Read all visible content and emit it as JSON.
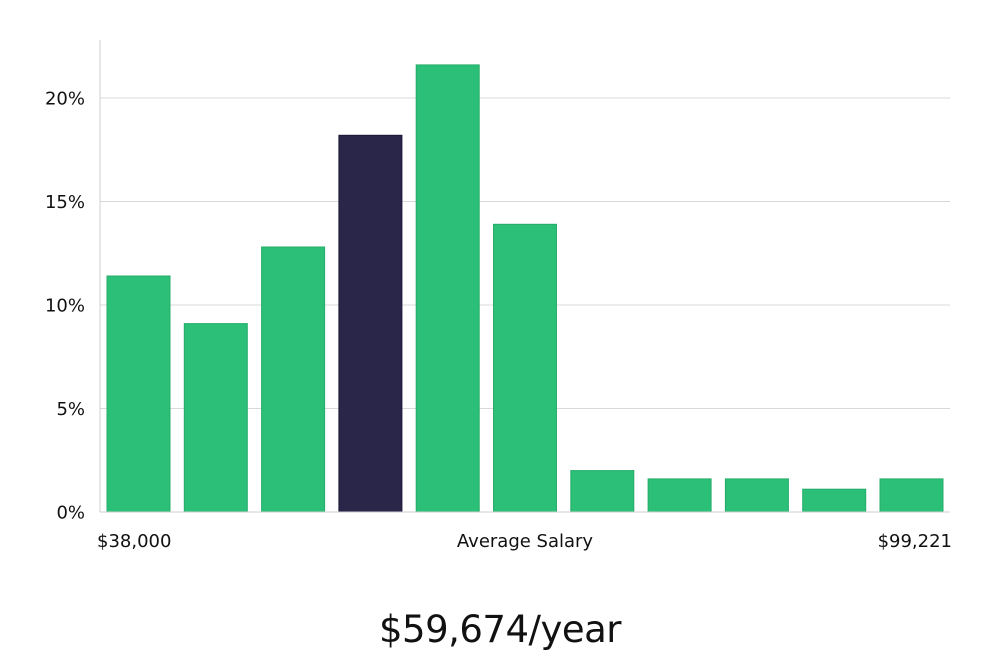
{
  "headline": "$59,674/year",
  "chart_data": {
    "type": "bar",
    "categories": [
      "1",
      "2",
      "3",
      "4",
      "5",
      "6",
      "7",
      "8",
      "9",
      "10",
      "11"
    ],
    "values": [
      11.4,
      9.1,
      12.8,
      18.2,
      21.6,
      13.9,
      2.0,
      1.6,
      1.6,
      1.1,
      1.6
    ],
    "highlight_index": 3,
    "ylim": [
      0,
      22.5
    ],
    "y_ticks": [
      {
        "value": 0,
        "label": "0%"
      },
      {
        "value": 5,
        "label": "5%"
      },
      {
        "value": 10,
        "label": "10%"
      },
      {
        "value": 15,
        "label": "15%"
      },
      {
        "value": 20,
        "label": "20%"
      }
    ],
    "x_labels": {
      "min": "$38,000",
      "center": "Average Salary",
      "max": "$99,221"
    },
    "grid": true,
    "colors": {
      "bar": "#2bbf77",
      "bar_highlight": "#29264a",
      "grid": "#d9d9d9",
      "axis": "#cfcfcf"
    }
  }
}
